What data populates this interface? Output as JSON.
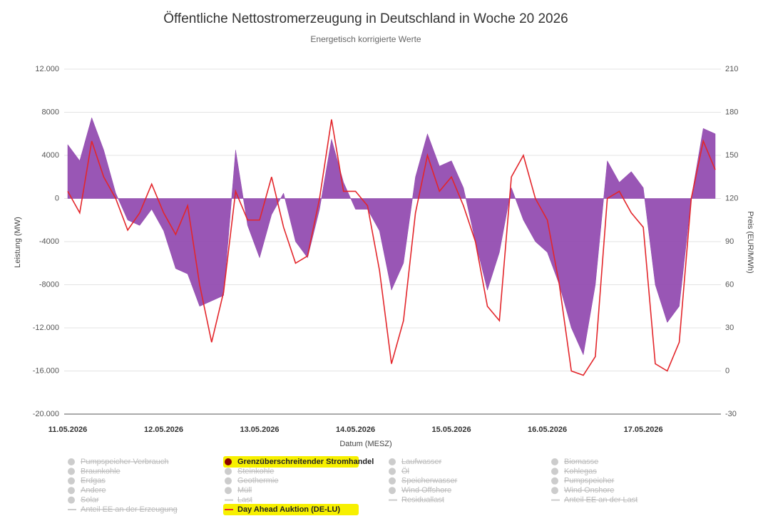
{
  "chart_data": {
    "type": "area-line",
    "title": "Öffentliche Nettostromerzeugung in Deutschland in Woche 20 2026",
    "subtitle": "Energetisch korrigierte Werte",
    "x_label": "Datum (MESZ)",
    "y_label": "Leistung (MW)",
    "y2_label": "Preis (EUR/MWh)",
    "categories": [
      "11.05.2026",
      null,
      null,
      null,
      null,
      null,
      null,
      null,
      "12.05.2026",
      null,
      null,
      null,
      null,
      null,
      null,
      null,
      "13.05.2026",
      null,
      null,
      null,
      null,
      null,
      null,
      null,
      "14.05.2026",
      null,
      null,
      null,
      null,
      null,
      null,
      null,
      "15.05.2026",
      null,
      null,
      null,
      null,
      null,
      null,
      null,
      "16.05.2026",
      null,
      null,
      null,
      null,
      null,
      null,
      null,
      "17.05.2026",
      null,
      null,
      null,
      null,
      null,
      null
    ],
    "ylim": [
      -20000,
      12000
    ],
    "yticks": [
      {
        "value": 12000,
        "label": "12.000"
      },
      8000,
      4000,
      0,
      -4000,
      -8000,
      {
        "value": -12000,
        "label": "-12.000"
      },
      {
        "value": -16000,
        "label": "-16.000"
      },
      {
        "value": -20000,
        "label": "-20.000"
      }
    ],
    "y2lim": [
      -30,
      210
    ],
    "y2ticks": [
      210,
      180,
      150,
      120,
      90,
      60,
      30,
      0,
      -30
    ],
    "grid": true,
    "series": [
      {
        "name": "Pumpspeicher Verbrauch",
        "marker": "dot",
        "visible": false
      },
      {
        "name": "Braunkohle",
        "marker": "dot",
        "visible": false
      },
      {
        "name": "Erdgas",
        "marker": "dot",
        "visible": false
      },
      {
        "name": "Andere",
        "marker": "dot",
        "visible": false
      },
      {
        "name": "Solar",
        "marker": "dot",
        "visible": false
      },
      {
        "name": "Anteil EE an der Erzeugung",
        "marker": "line",
        "visible": false
      },
      {
        "name": "Grenzüberschreitender Stromhandel",
        "marker": "dot",
        "visible": true,
        "type": "area",
        "color": "#8e44ad",
        "values": [
          5000,
          3500,
          7500,
          4500,
          500,
          -2000,
          -2500,
          -1000,
          -3000,
          -6500,
          -7000,
          -10000,
          -9500,
          -9000,
          4500,
          -2500,
          -5500,
          -1500,
          500,
          -4000,
          -5500,
          -1000,
          5500,
          1500,
          -1000,
          -1000,
          -3000,
          -8500,
          -6000,
          2000,
          6000,
          3000,
          3500,
          1000,
          -4000,
          -8500,
          -5000,
          1000,
          -2000,
          -4000,
          -5000,
          -8000,
          -12000,
          -14500,
          -8000,
          3500,
          1500,
          2500,
          1000,
          -8000,
          -11500,
          -10000,
          0,
          6500,
          6000
        ]
      },
      {
        "name": "Steinkohle",
        "marker": "dot",
        "visible": false
      },
      {
        "name": "Geothermie",
        "marker": "dot",
        "visible": false
      },
      {
        "name": "Müll",
        "marker": "dot",
        "visible": false
      },
      {
        "name": "Last",
        "marker": "line",
        "visible": false
      },
      {
        "name": "Day Ahead Auktion (DE-LU)",
        "marker": "line",
        "visible": true,
        "type": "line",
        "color": "#e3262b",
        "axis": "y2",
        "values": [
          125,
          110,
          160,
          135,
          120,
          98,
          110,
          130,
          110,
          95,
          115,
          60,
          20,
          55,
          125,
          105,
          105,
          135,
          100,
          75,
          80,
          120,
          175,
          125,
          125,
          115,
          70,
          5,
          35,
          110,
          150,
          125,
          135,
          115,
          90,
          45,
          35,
          135,
          150,
          120,
          105,
          60,
          0,
          -3,
          10,
          120,
          125,
          110,
          100,
          5,
          0,
          20,
          120,
          160,
          140
        ]
      },
      {
        "name": "Laufwasser",
        "marker": "dot",
        "visible": false
      },
      {
        "name": "Öl",
        "marker": "dot",
        "visible": false
      },
      {
        "name": "Speicherwasser",
        "marker": "dot",
        "visible": false
      },
      {
        "name": "Wind Offshore",
        "marker": "dot",
        "visible": false
      },
      {
        "name": "Residuallast",
        "marker": "line",
        "visible": false
      },
      {
        "name": "Biomasse",
        "marker": "dot",
        "visible": false
      },
      {
        "name": "Kohlegas",
        "marker": "dot",
        "visible": false
      },
      {
        "name": "Pumpspeicher",
        "marker": "dot",
        "visible": false
      },
      {
        "name": "Wind Onshore",
        "marker": "dot",
        "visible": false
      },
      {
        "name": "Anteil EE an der Last",
        "marker": "line",
        "visible": false
      }
    ]
  }
}
